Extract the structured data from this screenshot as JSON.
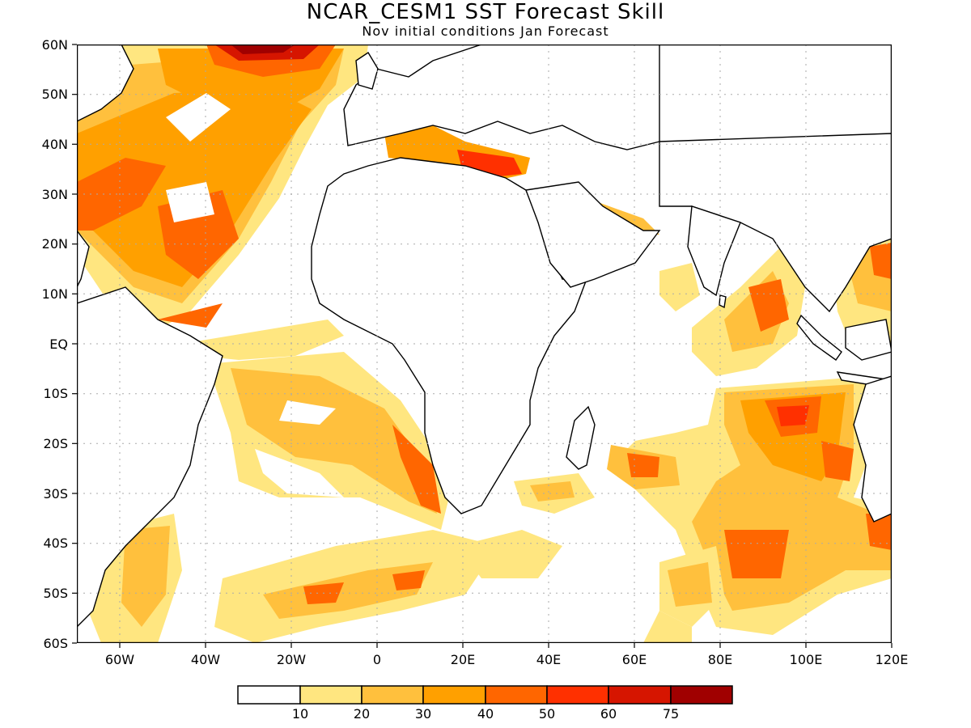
{
  "title": "NCAR_CESM1 SST Forecast Skill",
  "subtitle": "Nov initial conditions  Jan Forecast",
  "lat_labels": [
    "60N",
    "50N",
    "40N",
    "30N",
    "20N",
    "10N",
    "EQ",
    "10S",
    "20S",
    "30S",
    "40S",
    "50S",
    "60S"
  ],
  "lon_labels": [
    "60W",
    "40W",
    "20W",
    "0",
    "20E",
    "40E",
    "60E",
    "80E",
    "100E",
    "120E"
  ],
  "legend": {
    "boundaries": [
      "10",
      "20",
      "30",
      "40",
      "50",
      "60",
      "75"
    ],
    "colors": [
      "#ffffff",
      "#ffe680",
      "#ffc03d",
      "#ffa000",
      "#ff6600",
      "#ff3000",
      "#d61500",
      "#a00000"
    ]
  },
  "map": {
    "region": "Atlantic / Africa / Indian Ocean",
    "lon_range": [
      -70,
      120
    ],
    "lat_range": [
      -60,
      60
    ],
    "grid": "dotted",
    "features": [
      "coastlines",
      "shaded skill contours"
    ]
  }
}
